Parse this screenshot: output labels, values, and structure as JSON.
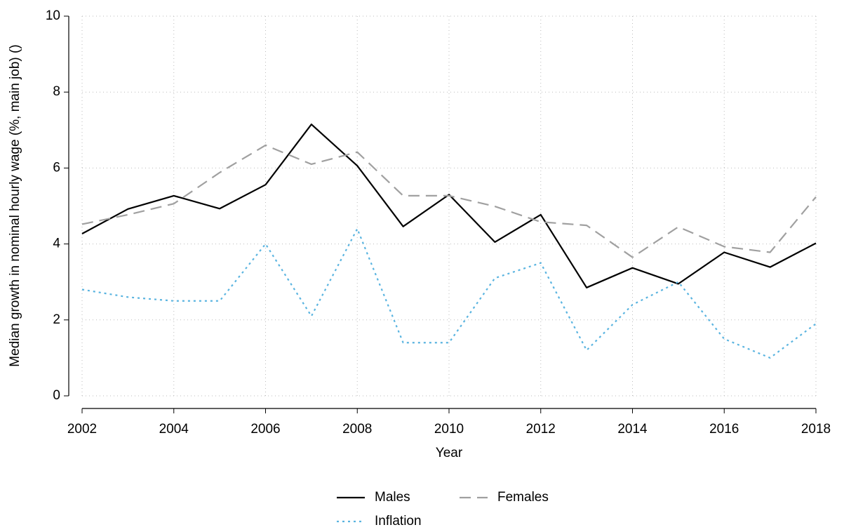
{
  "chart_data": {
    "type": "line",
    "x_label": "Year",
    "y_label": "Median growth in nominal hourly wage (%, main job) ()",
    "x": [
      2002,
      2003,
      2004,
      2005,
      2006,
      2007,
      2008,
      2009,
      2010,
      2011,
      2012,
      2013,
      2014,
      2015,
      2016,
      2017,
      2018
    ],
    "series": [
      {
        "name": "Males",
        "color": "#000000",
        "dash": "solid",
        "values": [
          4.27,
          4.92,
          5.27,
          4.93,
          5.56,
          7.15,
          6.06,
          4.46,
          5.3,
          4.05,
          4.77,
          2.85,
          3.37,
          2.95,
          3.78,
          3.39,
          4.02
        ]
      },
      {
        "name": "Females",
        "color": "#a0a0a0",
        "dash": "dashed",
        "values": [
          4.52,
          4.77,
          5.06,
          5.88,
          6.6,
          6.1,
          6.42,
          5.27,
          5.27,
          4.99,
          4.58,
          4.49,
          3.65,
          4.45,
          3.93,
          3.78,
          5.24
        ]
      },
      {
        "name": "Inflation",
        "color": "#5ab4e0",
        "dash": "dotted",
        "values": [
          2.8,
          2.6,
          2.5,
          2.5,
          4.0,
          2.1,
          4.4,
          1.4,
          1.4,
          3.1,
          3.5,
          1.2,
          2.4,
          3.0,
          1.5,
          1.0,
          1.9
        ]
      }
    ],
    "xlim": [
      2002,
      2018
    ],
    "xticks": [
      2002,
      2004,
      2006,
      2008,
      2010,
      2012,
      2014,
      2016,
      2018
    ],
    "ylim": [
      0,
      10
    ],
    "yticks": [
      0,
      2,
      4,
      6,
      8,
      10
    ],
    "grid": true,
    "legend": "bottom"
  }
}
